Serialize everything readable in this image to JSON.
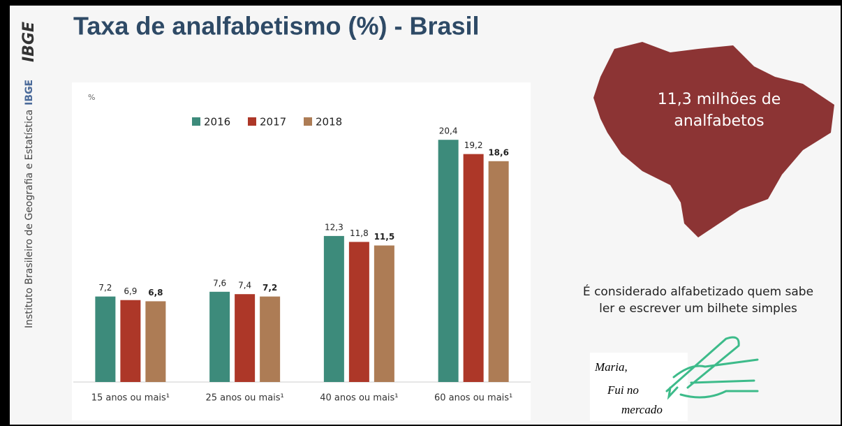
{
  "header": {
    "title": "Taxa de analfabetismo (%) - Brasil",
    "logo": "IBGE",
    "institute": "Instituto Brasileiro de Geografia e Estatística",
    "institute_short": "IBGE"
  },
  "chart_data": {
    "type": "bar",
    "unit_label": "%",
    "categories": [
      "15 anos ou mais¹",
      "25 anos ou mais¹",
      "40 anos ou mais¹",
      "60 anos ou mais¹"
    ],
    "series": [
      {
        "name": "2016",
        "color": "#3d8b7b",
        "values": [
          7.2,
          7.6,
          12.3,
          20.4
        ],
        "value_labels": [
          "7,2",
          "7,6",
          "12,3",
          "20,4"
        ]
      },
      {
        "name": "2017",
        "color": "#ad3728",
        "values": [
          6.9,
          7.4,
          11.8,
          19.2
        ],
        "value_labels": [
          "6,9",
          "7,4",
          "11,8",
          "19,2"
        ]
      },
      {
        "name": "2018",
        "color": "#ad7c55",
        "values": [
          6.8,
          7.2,
          11.5,
          18.6
        ],
        "value_labels": [
          "6,8",
          "7,2",
          "11,5",
          "18,6"
        ]
      }
    ],
    "ylim": [
      0,
      22
    ]
  },
  "map": {
    "lines": [
      "11,3 milhões de",
      "analfabetos"
    ]
  },
  "note": {
    "lines": [
      "É considerado alfabetizado quem sabe",
      "ler e escrever um bilhete simples"
    ]
  },
  "handwriting": {
    "lines": [
      "Maria,",
      "Fui no",
      "mercado"
    ]
  }
}
